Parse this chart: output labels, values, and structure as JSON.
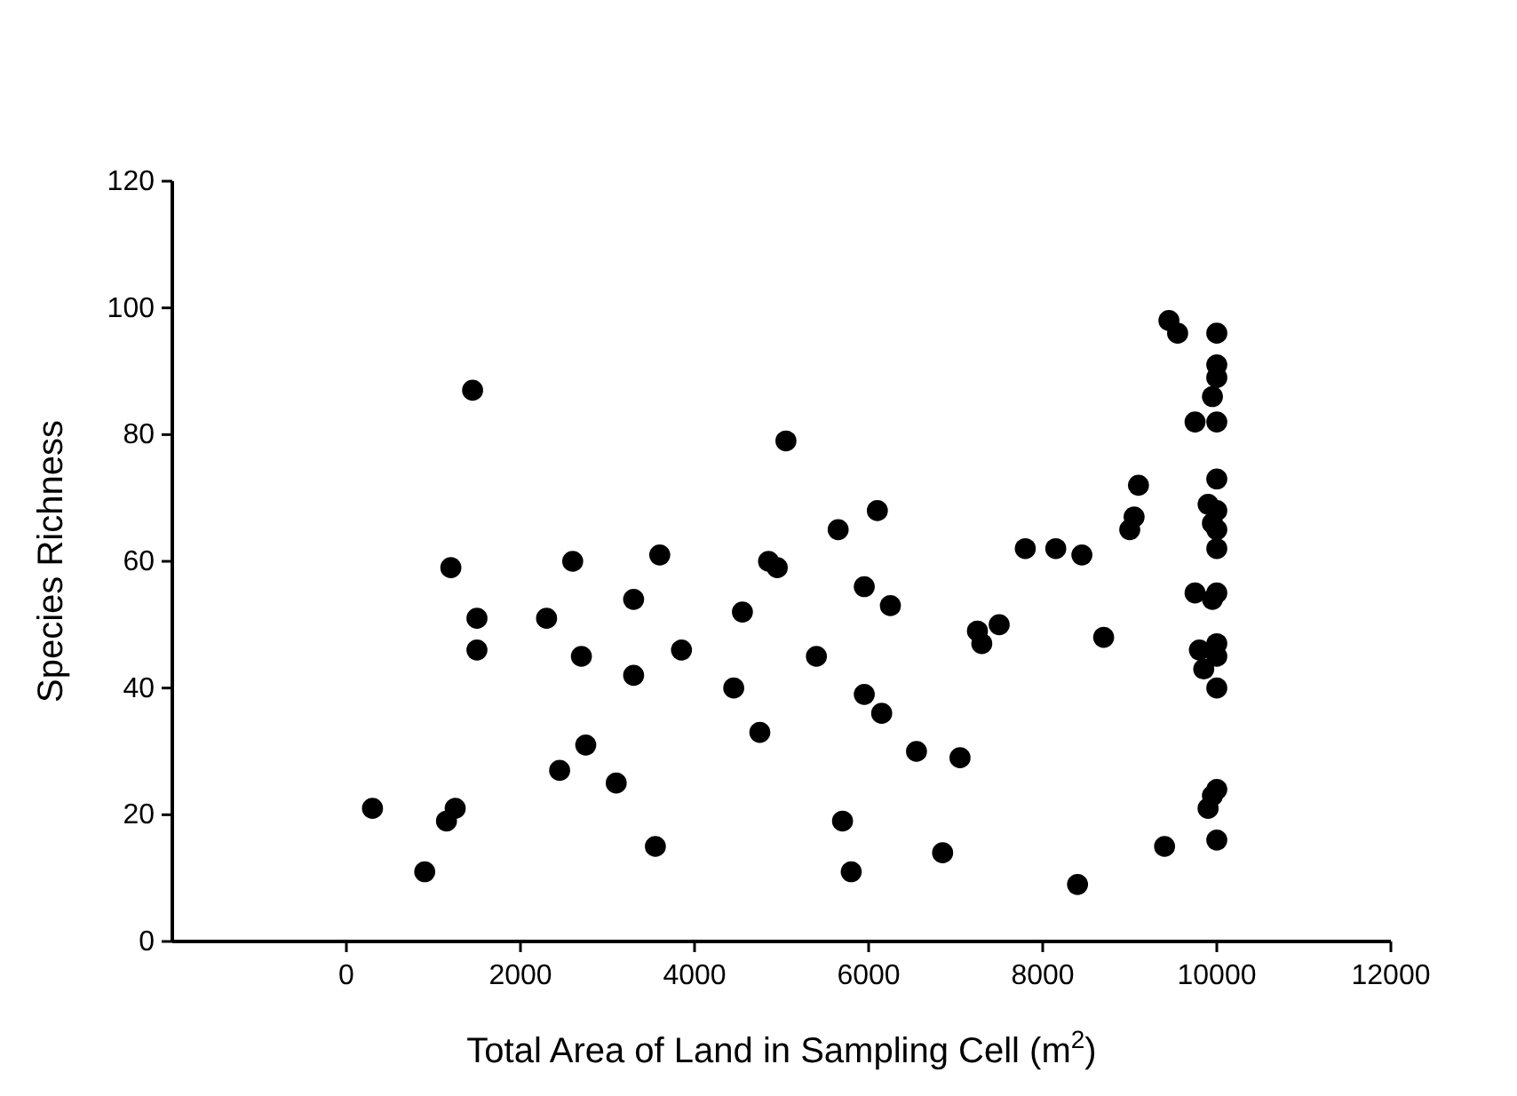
{
  "chart_data": {
    "type": "scatter",
    "xlabel": "Total Area of Land in Sampling Cell (m$^{2}$)",
    "ylabel": "Species Richness",
    "xlim": [
      -2000,
      12000
    ],
    "xticks": [
      0,
      2000,
      4000,
      6000,
      8000,
      10000,
      12000
    ],
    "ylim": [
      0,
      120
    ],
    "yticks": [
      0,
      20,
      40,
      60,
      80,
      100,
      120
    ],
    "grid": false,
    "marker": "circle",
    "series": [
      {
        "color": "#000000",
        "x": [
          300,
          900,
          1150,
          1250,
          1200,
          1450,
          1500,
          1500,
          2300,
          2450,
          2600,
          2700,
          2750,
          3100,
          3300,
          3300,
          3550,
          3600,
          3850,
          4450,
          4550,
          4750,
          4850,
          4950,
          5050,
          5400,
          5650,
          5700,
          5800,
          5950,
          5950,
          6100,
          6150,
          6250,
          6550,
          6850,
          7050,
          7250,
          7300,
          7500,
          7800,
          8150,
          8450,
          8400,
          8700,
          9000,
          9050,
          9100,
          9400,
          9450,
          9550,
          9750,
          9750,
          9800,
          9850,
          9900,
          9900,
          9950,
          9950,
          9950,
          10000,
          10000,
          10000,
          10000,
          10000,
          10000,
          10000,
          10000,
          10000,
          10000,
          10000,
          10000,
          10000,
          10000,
          9950
        ],
        "values": [
          21,
          11,
          19,
          21,
          59,
          87,
          51,
          46,
          51,
          27,
          60,
          45,
          31,
          25,
          54,
          42,
          15,
          61,
          46,
          40,
          52,
          33,
          60,
          59,
          79,
          45,
          65,
          19,
          11,
          39,
          56,
          68,
          36,
          53,
          30,
          14,
          29,
          49,
          47,
          50,
          62,
          62,
          61,
          9,
          48,
          65,
          67,
          72,
          15,
          98,
          96,
          82,
          55,
          46,
          43,
          69,
          21,
          54,
          66,
          86,
          96,
          91,
          89,
          82,
          73,
          68,
          65,
          62,
          55,
          47,
          45,
          40,
          24,
          16,
          23
        ]
      }
    ]
  }
}
